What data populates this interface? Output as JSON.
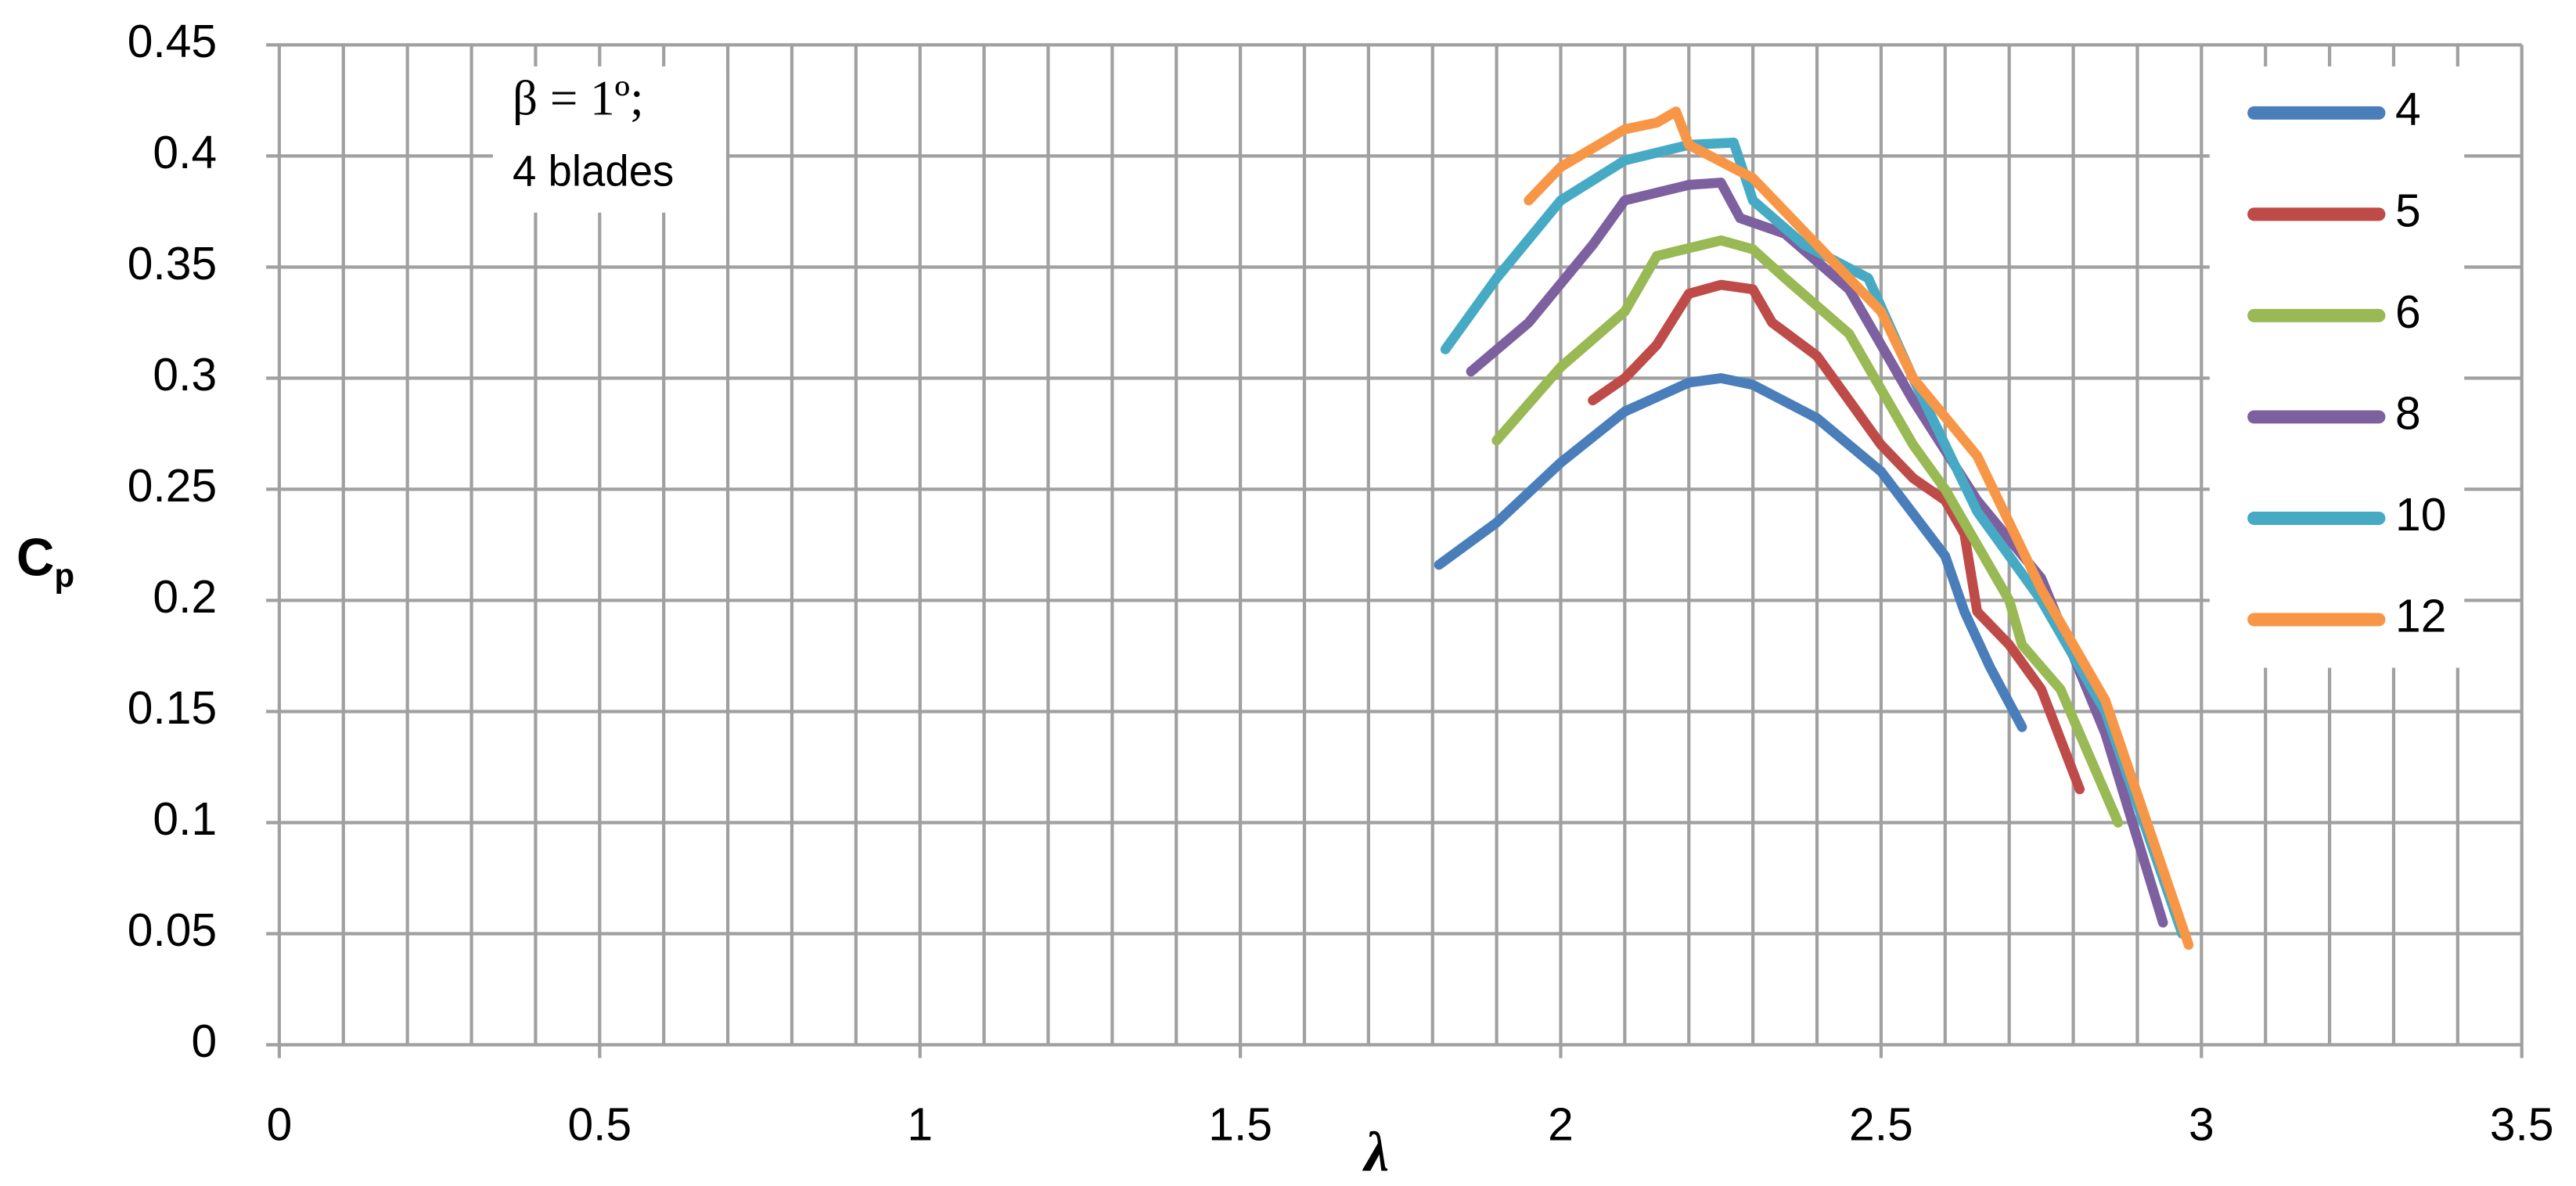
{
  "chart_data": {
    "type": "line",
    "xlabel": "λ",
    "ylabel": {
      "text": "C",
      "subscript": "p"
    },
    "annotation": [
      "β = 1º;",
      "4 blades"
    ],
    "xlim": [
      0,
      3.5
    ],
    "xticks": [
      0,
      0.5,
      1,
      1.5,
      2,
      2.5,
      3,
      3.5
    ],
    "xminorticks": [
      0.1,
      0.2,
      0.3,
      0.4,
      0.6,
      0.7,
      0.8,
      0.9,
      1.1,
      1.2,
      1.3,
      1.4,
      1.6,
      1.7,
      1.8,
      1.9,
      2.1,
      2.2,
      2.3,
      2.4,
      2.6,
      2.7,
      2.8,
      2.9,
      3.1,
      3.2,
      3.3,
      3.4
    ],
    "ylim": [
      0,
      0.45
    ],
    "yticks": [
      0,
      0.05,
      0.1,
      0.15,
      0.2,
      0.25,
      0.3,
      0.35,
      0.4,
      0.45
    ],
    "grid": true,
    "legend": "right",
    "series": [
      {
        "name": "4",
        "color": "#4a7ebb",
        "x": [
          1.81,
          1.9,
          2.0,
          2.1,
          2.2,
          2.25,
          2.3,
          2.4,
          2.5,
          2.6,
          2.63,
          2.67,
          2.72
        ],
        "values": [
          0.216,
          0.235,
          0.262,
          0.285,
          0.298,
          0.3,
          0.297,
          0.282,
          0.258,
          0.22,
          0.195,
          0.17,
          0.143
        ]
      },
      {
        "name": "5",
        "color": "#be4b48",
        "x": [
          2.05,
          2.1,
          2.15,
          2.2,
          2.25,
          2.3,
          2.33,
          2.4,
          2.45,
          2.5,
          2.55,
          2.6,
          2.63,
          2.65,
          2.7,
          2.75,
          2.81
        ],
        "values": [
          0.29,
          0.3,
          0.315,
          0.338,
          0.342,
          0.34,
          0.325,
          0.31,
          0.29,
          0.27,
          0.255,
          0.245,
          0.23,
          0.195,
          0.18,
          0.16,
          0.115
        ]
      },
      {
        "name": "6",
        "color": "#98b954",
        "x": [
          1.9,
          2.0,
          2.1,
          2.15,
          2.25,
          2.3,
          2.35,
          2.45,
          2.55,
          2.6,
          2.65,
          2.7,
          2.72,
          2.78,
          2.87
        ],
        "values": [
          0.272,
          0.305,
          0.33,
          0.355,
          0.362,
          0.358,
          0.345,
          0.32,
          0.27,
          0.25,
          0.225,
          0.2,
          0.18,
          0.16,
          0.1
        ]
      },
      {
        "name": "8",
        "color": "#7d60a0",
        "x": [
          1.86,
          1.95,
          2.05,
          2.1,
          2.2,
          2.25,
          2.28,
          2.35,
          2.45,
          2.55,
          2.65,
          2.75,
          2.85,
          2.94
        ],
        "values": [
          0.303,
          0.325,
          0.36,
          0.38,
          0.387,
          0.388,
          0.372,
          0.365,
          0.34,
          0.29,
          0.245,
          0.21,
          0.14,
          0.055
        ]
      },
      {
        "name": "10",
        "color": "#46aac5",
        "x": [
          1.82,
          1.9,
          2.0,
          2.1,
          2.2,
          2.27,
          2.3,
          2.38,
          2.48,
          2.55,
          2.65,
          2.75,
          2.85,
          2.97
        ],
        "values": [
          0.313,
          0.345,
          0.38,
          0.398,
          0.405,
          0.406,
          0.38,
          0.36,
          0.345,
          0.3,
          0.24,
          0.2,
          0.15,
          0.05
        ]
      },
      {
        "name": "12",
        "color": "#f79646",
        "x": [
          1.95,
          2.0,
          2.1,
          2.15,
          2.18,
          2.2,
          2.3,
          2.4,
          2.5,
          2.55,
          2.65,
          2.75,
          2.85,
          2.98
        ],
        "values": [
          0.38,
          0.395,
          0.412,
          0.415,
          0.42,
          0.405,
          0.39,
          0.36,
          0.33,
          0.3,
          0.265,
          0.205,
          0.155,
          0.045
        ]
      }
    ]
  }
}
